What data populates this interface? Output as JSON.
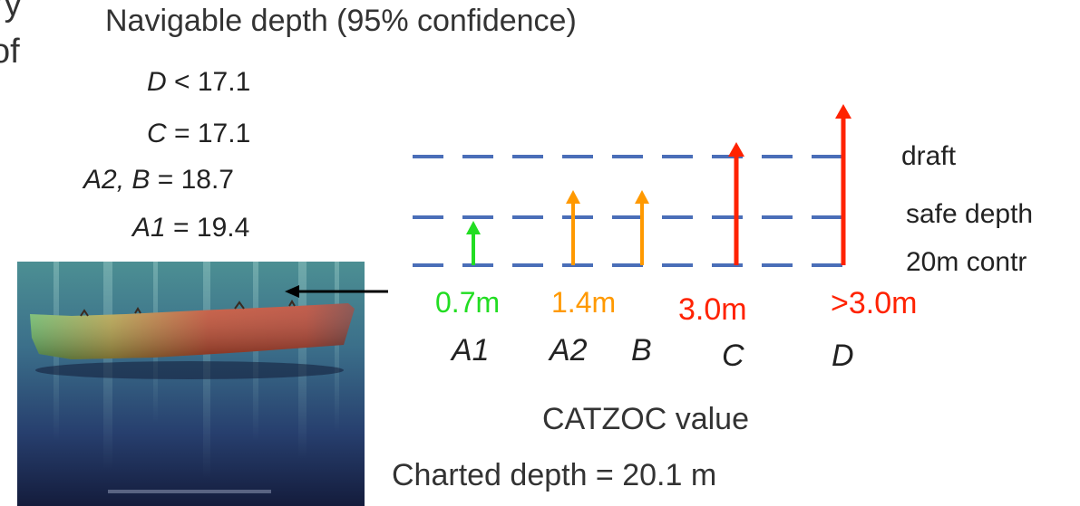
{
  "page": {
    "clipped_line_1": "ry",
    "clipped_line_2": "of",
    "title": "Navigable depth (95% confidence)",
    "bottom_label": "Charted depth = 20.1 m"
  },
  "depths": [
    {
      "cat": "D",
      "op": " < ",
      "value": "17.1"
    },
    {
      "cat": "C",
      "op": " = ",
      "value": "17.1"
    },
    {
      "cat": "A2, B",
      "op": " = ",
      "value": "18.7"
    },
    {
      "cat": "A1",
      "op": " = ",
      "value": "19.4"
    }
  ],
  "levels": [
    "draft",
    "safe depth",
    "20m contr"
  ],
  "uncertainties": [
    {
      "text": "0.7m",
      "color": "#22dd22"
    },
    {
      "text": "1.4m",
      "color": "#ff9900"
    },
    {
      "text": "3.0m",
      "color": "#ff2200"
    },
    {
      "text": ">3.0m",
      "color": "#ff2200"
    }
  ],
  "categories": [
    "A1",
    "A2",
    "B",
    "C",
    "D"
  ],
  "axis_label": "CATZOC value",
  "colors": {
    "dash": "#4a6eb8",
    "green": "#22dd22",
    "orange": "#ff9900",
    "red": "#ff2200",
    "pointer": "#000000"
  },
  "icons": {
    "pointer": "left-arrow-icon"
  }
}
